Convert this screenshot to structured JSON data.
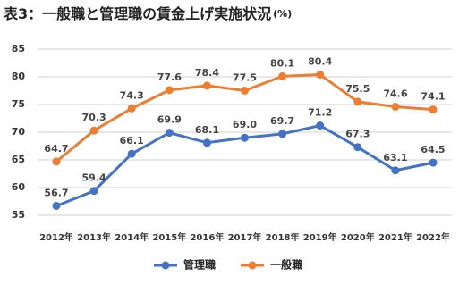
{
  "chart_data": {
    "type": "line",
    "title": "表3：一般職と管理職の賃金上げ実施状況",
    "unit": "(%)",
    "categories": [
      "2012年",
      "2013年",
      "2014年",
      "2015年",
      "2016年",
      "2017年",
      "2018年",
      "2019年",
      "2020年",
      "2021年",
      "2022年"
    ],
    "series": [
      {
        "name": "管理職",
        "color": "#4472c4",
        "values": [
          56.7,
          59.4,
          66.1,
          69.9,
          68.1,
          69.0,
          69.7,
          71.2,
          67.3,
          63.1,
          64.5
        ],
        "value_labels": [
          "56.7",
          "59.4",
          "66.1",
          "69.9",
          "68.1",
          "69.0",
          "69.7",
          "71.2",
          "67.3",
          "63.1",
          "64.5"
        ]
      },
      {
        "name": "一般職",
        "color": "#ed7d31",
        "values": [
          64.7,
          70.3,
          74.3,
          77.6,
          78.4,
          77.5,
          80.1,
          80.4,
          75.5,
          74.6,
          74.1
        ],
        "value_labels": [
          "64.7",
          "70.3",
          "74.3",
          "77.6",
          "78.4",
          "77.5",
          "80.1",
          "80.4",
          "75.5",
          "74.6",
          "74.1"
        ]
      }
    ],
    "ylim": [
      55,
      85
    ],
    "yticks": [
      55,
      60,
      65,
      70,
      75,
      80,
      85
    ],
    "grid": true,
    "legend": "bottom"
  }
}
